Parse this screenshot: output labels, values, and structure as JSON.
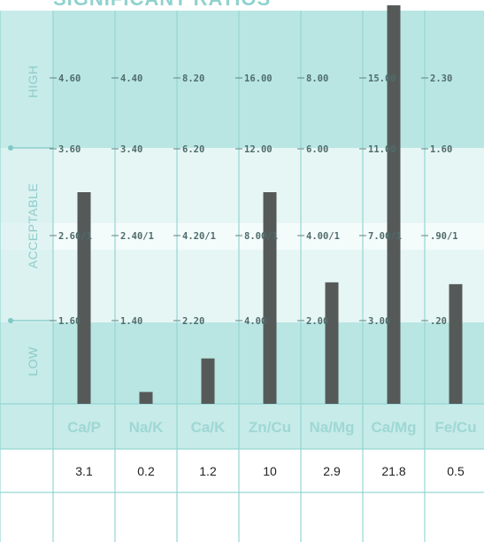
{
  "chart_data": {
    "type": "bar",
    "title": "SIGNIFICANT RATIOS",
    "bands": [
      "HIGH",
      "ACCEPTABLE",
      "LOW"
    ],
    "categories": [
      "Ca/P",
      "Na/K",
      "Ca/K",
      "Zn/Cu",
      "Na/Mg",
      "Ca/Mg",
      "Fe/Cu"
    ],
    "values": [
      3.1,
      0.2,
      1.2,
      10,
      2.9,
      21.8,
      0.5
    ],
    "value_labels": [
      "3.1",
      "0.2",
      "1.2",
      "10",
      "2.9",
      "21.8",
      "0.5"
    ],
    "reference_levels": {
      "high": [
        "4.60",
        "4.40",
        "8.20",
        "16.00",
        "8.00",
        "15.00",
        "2.30"
      ],
      "upper_acceptable": [
        "3.60",
        "3.40",
        "6.20",
        "12.00",
        "6.00",
        "11.00",
        "1.60"
      ],
      "ideal": [
        "2.60/1",
        "2.40/1",
        "4.20/1",
        "8.00/1",
        "4.00/1",
        "7.00/1",
        ".90/1"
      ],
      "lower_acceptable": [
        "1.60",
        "1.40",
        "2.20",
        "4.00",
        "2.00",
        "3.00",
        ".20"
      ]
    },
    "reference_values": {
      "high": [
        4.6,
        4.4,
        8.2,
        16,
        8,
        15,
        2.3
      ],
      "upper_acceptable": [
        3.6,
        3.4,
        6.2,
        12,
        6,
        11,
        1.6
      ],
      "ideal": [
        2.6,
        2.4,
        4.2,
        8,
        4,
        7,
        0.9
      ],
      "lower_acceptable": [
        1.6,
        1.4,
        2.2,
        4,
        2,
        3,
        0.2
      ]
    },
    "colors": {
      "band_dark": "#b9e6e3",
      "band_light": "#e6f6f5",
      "bar": "#555a59",
      "grid": "#95d6d3",
      "category_text": "#9fd7d5"
    }
  }
}
